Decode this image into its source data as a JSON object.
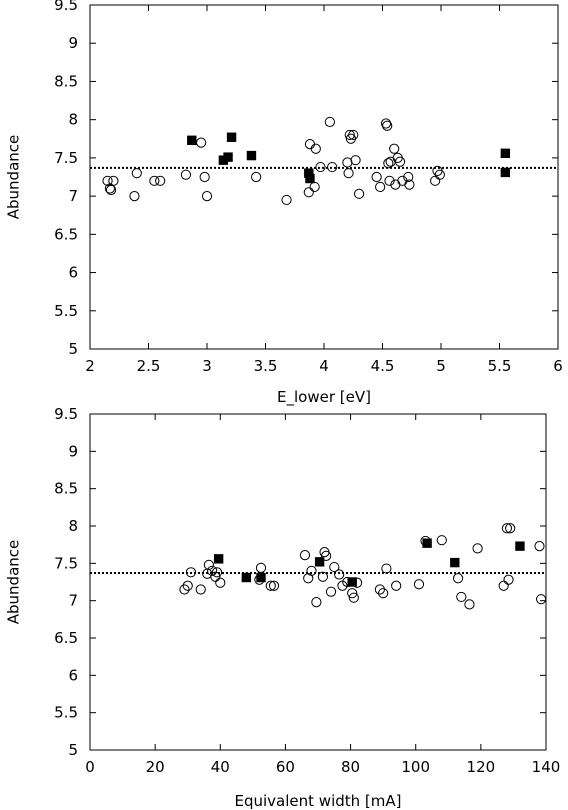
{
  "chart_data": [
    {
      "type": "scatter",
      "title": "",
      "xlabel": "E_lower [eV]",
      "ylabel": "Abundance",
      "xlim": [
        2,
        6
      ],
      "ylim": [
        5,
        9.5
      ],
      "xticks": [
        "2",
        "2.5",
        "3",
        "3.5",
        "4",
        "4.5",
        "5",
        "5.5",
        "6"
      ],
      "yticks": [
        "5",
        "5.5",
        "6",
        "6.5",
        "7",
        "7.5",
        "8",
        "8.5",
        "9",
        "9.5"
      ],
      "reference_line": 7.37,
      "grid": false,
      "series": [
        {
          "marker": "open-circle",
          "x": [
            2.15,
            2.17,
            2.18,
            2.2,
            2.38,
            2.4,
            2.55,
            2.6,
            2.82,
            2.95,
            2.98,
            3.0,
            3.42,
            3.68,
            3.87,
            3.88,
            3.92,
            3.93,
            3.97,
            4.05,
            4.07,
            4.2,
            4.21,
            4.22,
            4.23,
            4.25,
            4.27,
            4.3,
            4.45,
            4.48,
            4.53,
            4.54,
            4.55,
            4.56,
            4.57,
            4.6,
            4.61,
            4.63,
            4.65,
            4.67,
            4.72,
            4.73,
            4.95,
            4.97,
            4.99
          ],
          "y": [
            7.2,
            7.1,
            7.08,
            7.2,
            7.0,
            7.3,
            7.2,
            7.2,
            7.28,
            7.7,
            7.25,
            7.0,
            7.25,
            6.95,
            7.05,
            7.68,
            7.12,
            7.62,
            7.38,
            7.97,
            7.38,
            7.44,
            7.3,
            7.8,
            7.75,
            7.8,
            7.47,
            7.03,
            7.25,
            7.12,
            7.95,
            7.92,
            7.43,
            7.2,
            7.45,
            7.62,
            7.15,
            7.5,
            7.45,
            7.2,
            7.25,
            7.15,
            7.2,
            7.33,
            7.28
          ]
        },
        {
          "marker": "filled-square",
          "x": [
            2.87,
            3.14,
            3.18,
            3.21,
            3.38,
            3.87,
            3.88,
            5.55,
            5.55
          ],
          "y": [
            7.73,
            7.47,
            7.51,
            7.77,
            7.53,
            7.3,
            7.23,
            7.56,
            7.31
          ]
        }
      ]
    },
    {
      "type": "scatter",
      "title": "",
      "xlabel": "Equivalent width [mA]",
      "ylabel": "Abundance",
      "xlim": [
        0,
        140
      ],
      "ylim": [
        5,
        9.5
      ],
      "xticks": [
        "0",
        "20",
        "40",
        "60",
        "80",
        "100",
        "120",
        "140"
      ],
      "yticks": [
        "5",
        "5.5",
        "6",
        "6.5",
        "7",
        "7.5",
        "8",
        "8.5",
        "9",
        "9.5"
      ],
      "reference_line": 7.37,
      "grid": false,
      "series": [
        {
          "marker": "open-circle",
          "x": [
            29,
            30,
            31,
            34,
            36,
            36.5,
            37.5,
            38.5,
            39,
            40,
            52,
            52.5,
            55.5,
            56.5,
            66,
            67,
            68,
            69.5,
            71.5,
            72,
            72.5,
            74,
            75,
            76.5,
            77.5,
            79,
            80.5,
            81,
            82,
            89,
            90,
            91,
            94,
            101,
            103,
            108,
            113,
            114,
            116.5,
            119,
            127,
            128,
            128.5,
            129,
            138,
            138.5
          ],
          "y": [
            7.15,
            7.2,
            7.38,
            7.15,
            7.36,
            7.48,
            7.4,
            7.32,
            7.38,
            7.24,
            7.28,
            7.44,
            7.2,
            7.2,
            7.61,
            7.3,
            7.4,
            6.98,
            7.32,
            7.65,
            7.6,
            7.12,
            7.45,
            7.35,
            7.2,
            7.25,
            7.1,
            7.04,
            7.24,
            7.15,
            7.1,
            7.43,
            7.2,
            7.22,
            7.8,
            7.81,
            7.3,
            7.05,
            6.95,
            7.7,
            7.2,
            7.97,
            7.28,
            7.97,
            7.73,
            7.02
          ]
        },
        {
          "marker": "filled-square",
          "x": [
            39.5,
            48,
            52.5,
            70.5,
            80.5,
            103.5,
            112,
            132
          ],
          "y": [
            7.56,
            7.31,
            7.31,
            7.52,
            7.25,
            7.77,
            7.51,
            7.73
          ]
        }
      ]
    }
  ]
}
